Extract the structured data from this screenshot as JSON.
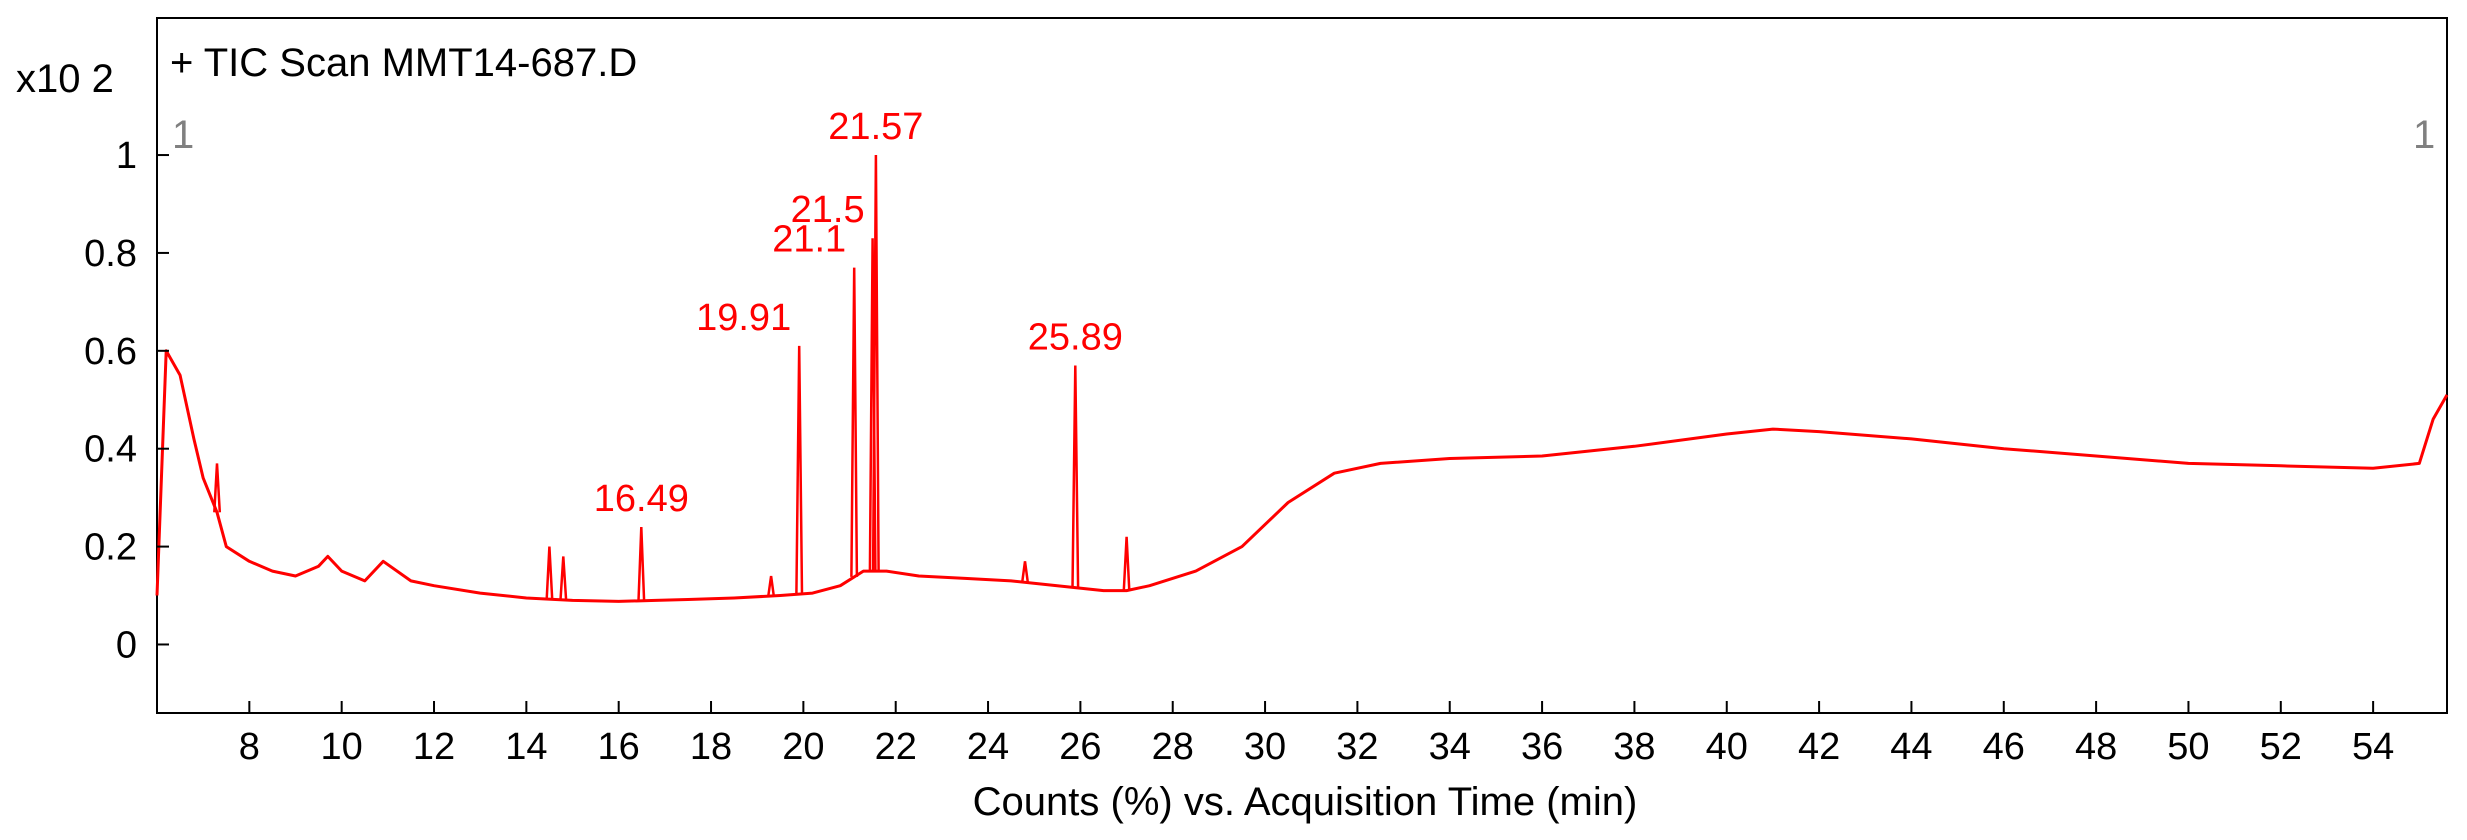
{
  "chart_data": {
    "type": "line",
    "title": "+ TIC Scan MMT14-687.D",
    "xlabel": "Counts (%) vs. Acquisition Time (min)",
    "y_multiplier": "x10 2",
    "xlim": [
      6.0,
      55.6
    ],
    "ylim": [
      -0.14,
      1.28
    ],
    "x_ticks": [
      8,
      10,
      12,
      14,
      16,
      18,
      20,
      22,
      24,
      26,
      28,
      30,
      32,
      34,
      36,
      38,
      40,
      42,
      44,
      46,
      48,
      50,
      52,
      54
    ],
    "y_ticks": [
      0,
      0.2,
      0.4,
      0.6,
      0.8,
      1
    ],
    "y_tick_labels": [
      "0",
      "0.2",
      "0.4",
      "0.6",
      "0.8",
      "1"
    ],
    "grid": false,
    "line_color": "#ff0000",
    "range_markers": [
      "1",
      "1"
    ],
    "peak_labels": [
      {
        "x": 16.49,
        "y": 0.24,
        "label": "16.49"
      },
      {
        "x": 19.91,
        "y": 0.61,
        "label": "19.91"
      },
      {
        "x": 21.1,
        "y": 0.77,
        "label": "21.1"
      },
      {
        "x": 21.5,
        "y": 0.83,
        "label": "21.5"
      },
      {
        "x": 21.57,
        "y": 1.0,
        "label": "21.57"
      },
      {
        "x": 25.89,
        "y": 0.57,
        "label": "25.89"
      }
    ],
    "series": [
      {
        "x": [
          6.0,
          6.2,
          6.5,
          6.8,
          7.0,
          7.3,
          7.5,
          8.0,
          8.5,
          9.0,
          9.5,
          9.7,
          10.0,
          10.5,
          10.9,
          11.5,
          12.0,
          13.0,
          14.0,
          15.0,
          16.0,
          16.8,
          17.5,
          18.5,
          19.5,
          20.2,
          20.8,
          21.3,
          21.8,
          22.5,
          23.5,
          24.5,
          25.5,
          26.5,
          27.0,
          27.5,
          28.5,
          29.5,
          30.5,
          31.5,
          32.5,
          34.0,
          36.0,
          38.0,
          40.0,
          41.0,
          42.0,
          44.0,
          46.0,
          48.0,
          50.0,
          52.0,
          54.0,
          55.0,
          55.3,
          55.6
        ],
        "values": [
          0.1,
          0.6,
          0.55,
          0.42,
          0.34,
          0.27,
          0.2,
          0.17,
          0.15,
          0.14,
          0.16,
          0.18,
          0.15,
          0.13,
          0.17,
          0.13,
          0.12,
          0.105,
          0.095,
          0.09,
          0.088,
          0.09,
          0.092,
          0.095,
          0.1,
          0.105,
          0.12,
          0.15,
          0.15,
          0.14,
          0.135,
          0.13,
          0.12,
          0.11,
          0.11,
          0.12,
          0.15,
          0.2,
          0.29,
          0.35,
          0.37,
          0.38,
          0.385,
          0.405,
          0.43,
          0.44,
          0.435,
          0.42,
          0.4,
          0.385,
          0.37,
          0.365,
          0.36,
          0.37,
          0.46,
          0.51
        ]
      }
    ],
    "spikes": [
      {
        "x": 7.3,
        "y": 0.37
      },
      {
        "x": 14.5,
        "y": 0.2
      },
      {
        "x": 14.8,
        "y": 0.18
      },
      {
        "x": 16.49,
        "y": 0.24
      },
      {
        "x": 19.3,
        "y": 0.14
      },
      {
        "x": 19.91,
        "y": 0.61
      },
      {
        "x": 21.1,
        "y": 0.77
      },
      {
        "x": 21.5,
        "y": 0.83
      },
      {
        "x": 21.57,
        "y": 1.0
      },
      {
        "x": 24.8,
        "y": 0.17
      },
      {
        "x": 25.89,
        "y": 0.57
      },
      {
        "x": 27.0,
        "y": 0.22
      }
    ]
  }
}
